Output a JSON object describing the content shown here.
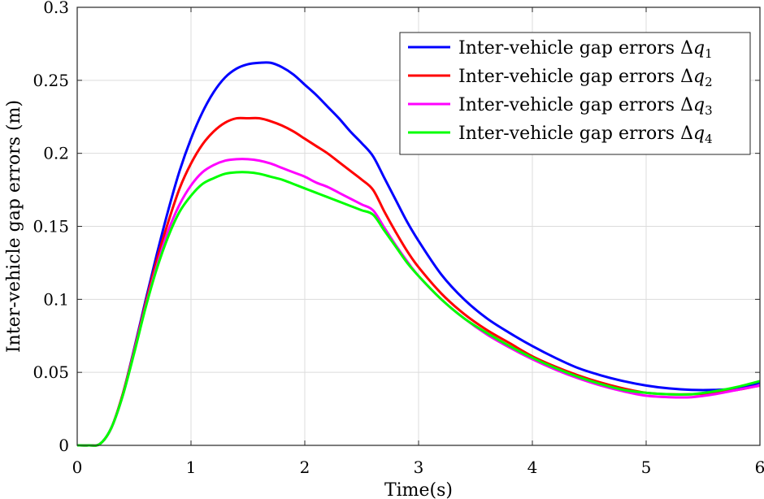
{
  "chart_data": {
    "type": "line",
    "title": "",
    "xlabel": "Time(s)",
    "ylabel": "Inter-vehicle gap errors (m)",
    "xlim": [
      0,
      6
    ],
    "ylim": [
      0,
      0.3
    ],
    "xticks": [
      0,
      1,
      2,
      3,
      4,
      5,
      6
    ],
    "xtick_labels": [
      "0",
      "1",
      "2",
      "3",
      "4",
      "5",
      "6"
    ],
    "yticks": [
      0,
      0.05,
      0.1,
      0.15,
      0.2,
      0.25,
      0.3
    ],
    "ytick_labels": [
      "0",
      "0.05",
      "0.1",
      "0.15",
      "0.2",
      "0.25",
      "0.3"
    ],
    "grid": true,
    "legend_position": "top-right",
    "legend_prefix": "Inter-vehicle gap errors Δ",
    "x": [
      0,
      0.1,
      0.2,
      0.3,
      0.4,
      0.5,
      0.6,
      0.7,
      0.8,
      0.9,
      1.0,
      1.1,
      1.2,
      1.3,
      1.4,
      1.5,
      1.6,
      1.7,
      1.8,
      1.9,
      2.0,
      2.1,
      2.2,
      2.3,
      2.4,
      2.5,
      2.6,
      2.7,
      2.8,
      2.9,
      3.0,
      3.2,
      3.4,
      3.6,
      3.8,
      4.0,
      4.2,
      4.4,
      4.6,
      4.8,
      5.0,
      5.2,
      5.4,
      5.6,
      5.8,
      6.0
    ],
    "series": [
      {
        "name": "q1",
        "legend_symbol": "q",
        "legend_index": "1",
        "color": "#0000ff",
        "values": [
          0,
          0,
          0.001,
          0.012,
          0.035,
          0.066,
          0.099,
          0.131,
          0.161,
          0.188,
          0.21,
          0.228,
          0.242,
          0.252,
          0.258,
          0.261,
          0.262,
          0.262,
          0.259,
          0.254,
          0.247,
          0.24,
          0.232,
          0.224,
          0.215,
          0.207,
          0.198,
          0.183,
          0.168,
          0.153,
          0.14,
          0.117,
          0.1,
          0.087,
          0.077,
          0.068,
          0.06,
          0.053,
          0.048,
          0.044,
          0.041,
          0.039,
          0.038,
          0.038,
          0.039,
          0.043
        ]
      },
      {
        "name": "q2",
        "legend_symbol": "q",
        "legend_index": "2",
        "color": "#ff0000",
        "values": [
          0,
          0,
          0.001,
          0.012,
          0.035,
          0.065,
          0.097,
          0.127,
          0.153,
          0.176,
          0.193,
          0.206,
          0.215,
          0.221,
          0.224,
          0.224,
          0.224,
          0.222,
          0.219,
          0.215,
          0.21,
          0.205,
          0.2,
          0.194,
          0.188,
          0.182,
          0.175,
          0.16,
          0.146,
          0.133,
          0.122,
          0.104,
          0.09,
          0.079,
          0.07,
          0.061,
          0.054,
          0.048,
          0.043,
          0.039,
          0.036,
          0.035,
          0.035,
          0.036,
          0.038,
          0.041
        ]
      },
      {
        "name": "q3",
        "legend_symbol": "q",
        "legend_index": "3",
        "color": "#ff00ff",
        "values": [
          0,
          0,
          0.001,
          0.012,
          0.034,
          0.064,
          0.095,
          0.123,
          0.147,
          0.165,
          0.178,
          0.187,
          0.192,
          0.195,
          0.196,
          0.196,
          0.195,
          0.193,
          0.19,
          0.187,
          0.184,
          0.18,
          0.177,
          0.173,
          0.169,
          0.165,
          0.161,
          0.149,
          0.137,
          0.126,
          0.116,
          0.1,
          0.087,
          0.076,
          0.067,
          0.059,
          0.052,
          0.046,
          0.041,
          0.037,
          0.034,
          0.033,
          0.033,
          0.035,
          0.038,
          0.041
        ]
      },
      {
        "name": "q4",
        "legend_symbol": "q",
        "legend_index": "4",
        "color": "#00ff00",
        "values": [
          0,
          0,
          0.001,
          0.012,
          0.034,
          0.063,
          0.094,
          0.121,
          0.143,
          0.16,
          0.171,
          0.179,
          0.183,
          0.186,
          0.187,
          0.187,
          0.186,
          0.184,
          0.182,
          0.179,
          0.176,
          0.173,
          0.17,
          0.167,
          0.164,
          0.161,
          0.158,
          0.147,
          0.136,
          0.125,
          0.116,
          0.1,
          0.087,
          0.077,
          0.068,
          0.06,
          0.053,
          0.047,
          0.042,
          0.038,
          0.036,
          0.035,
          0.035,
          0.037,
          0.04,
          0.044
        ]
      }
    ]
  }
}
